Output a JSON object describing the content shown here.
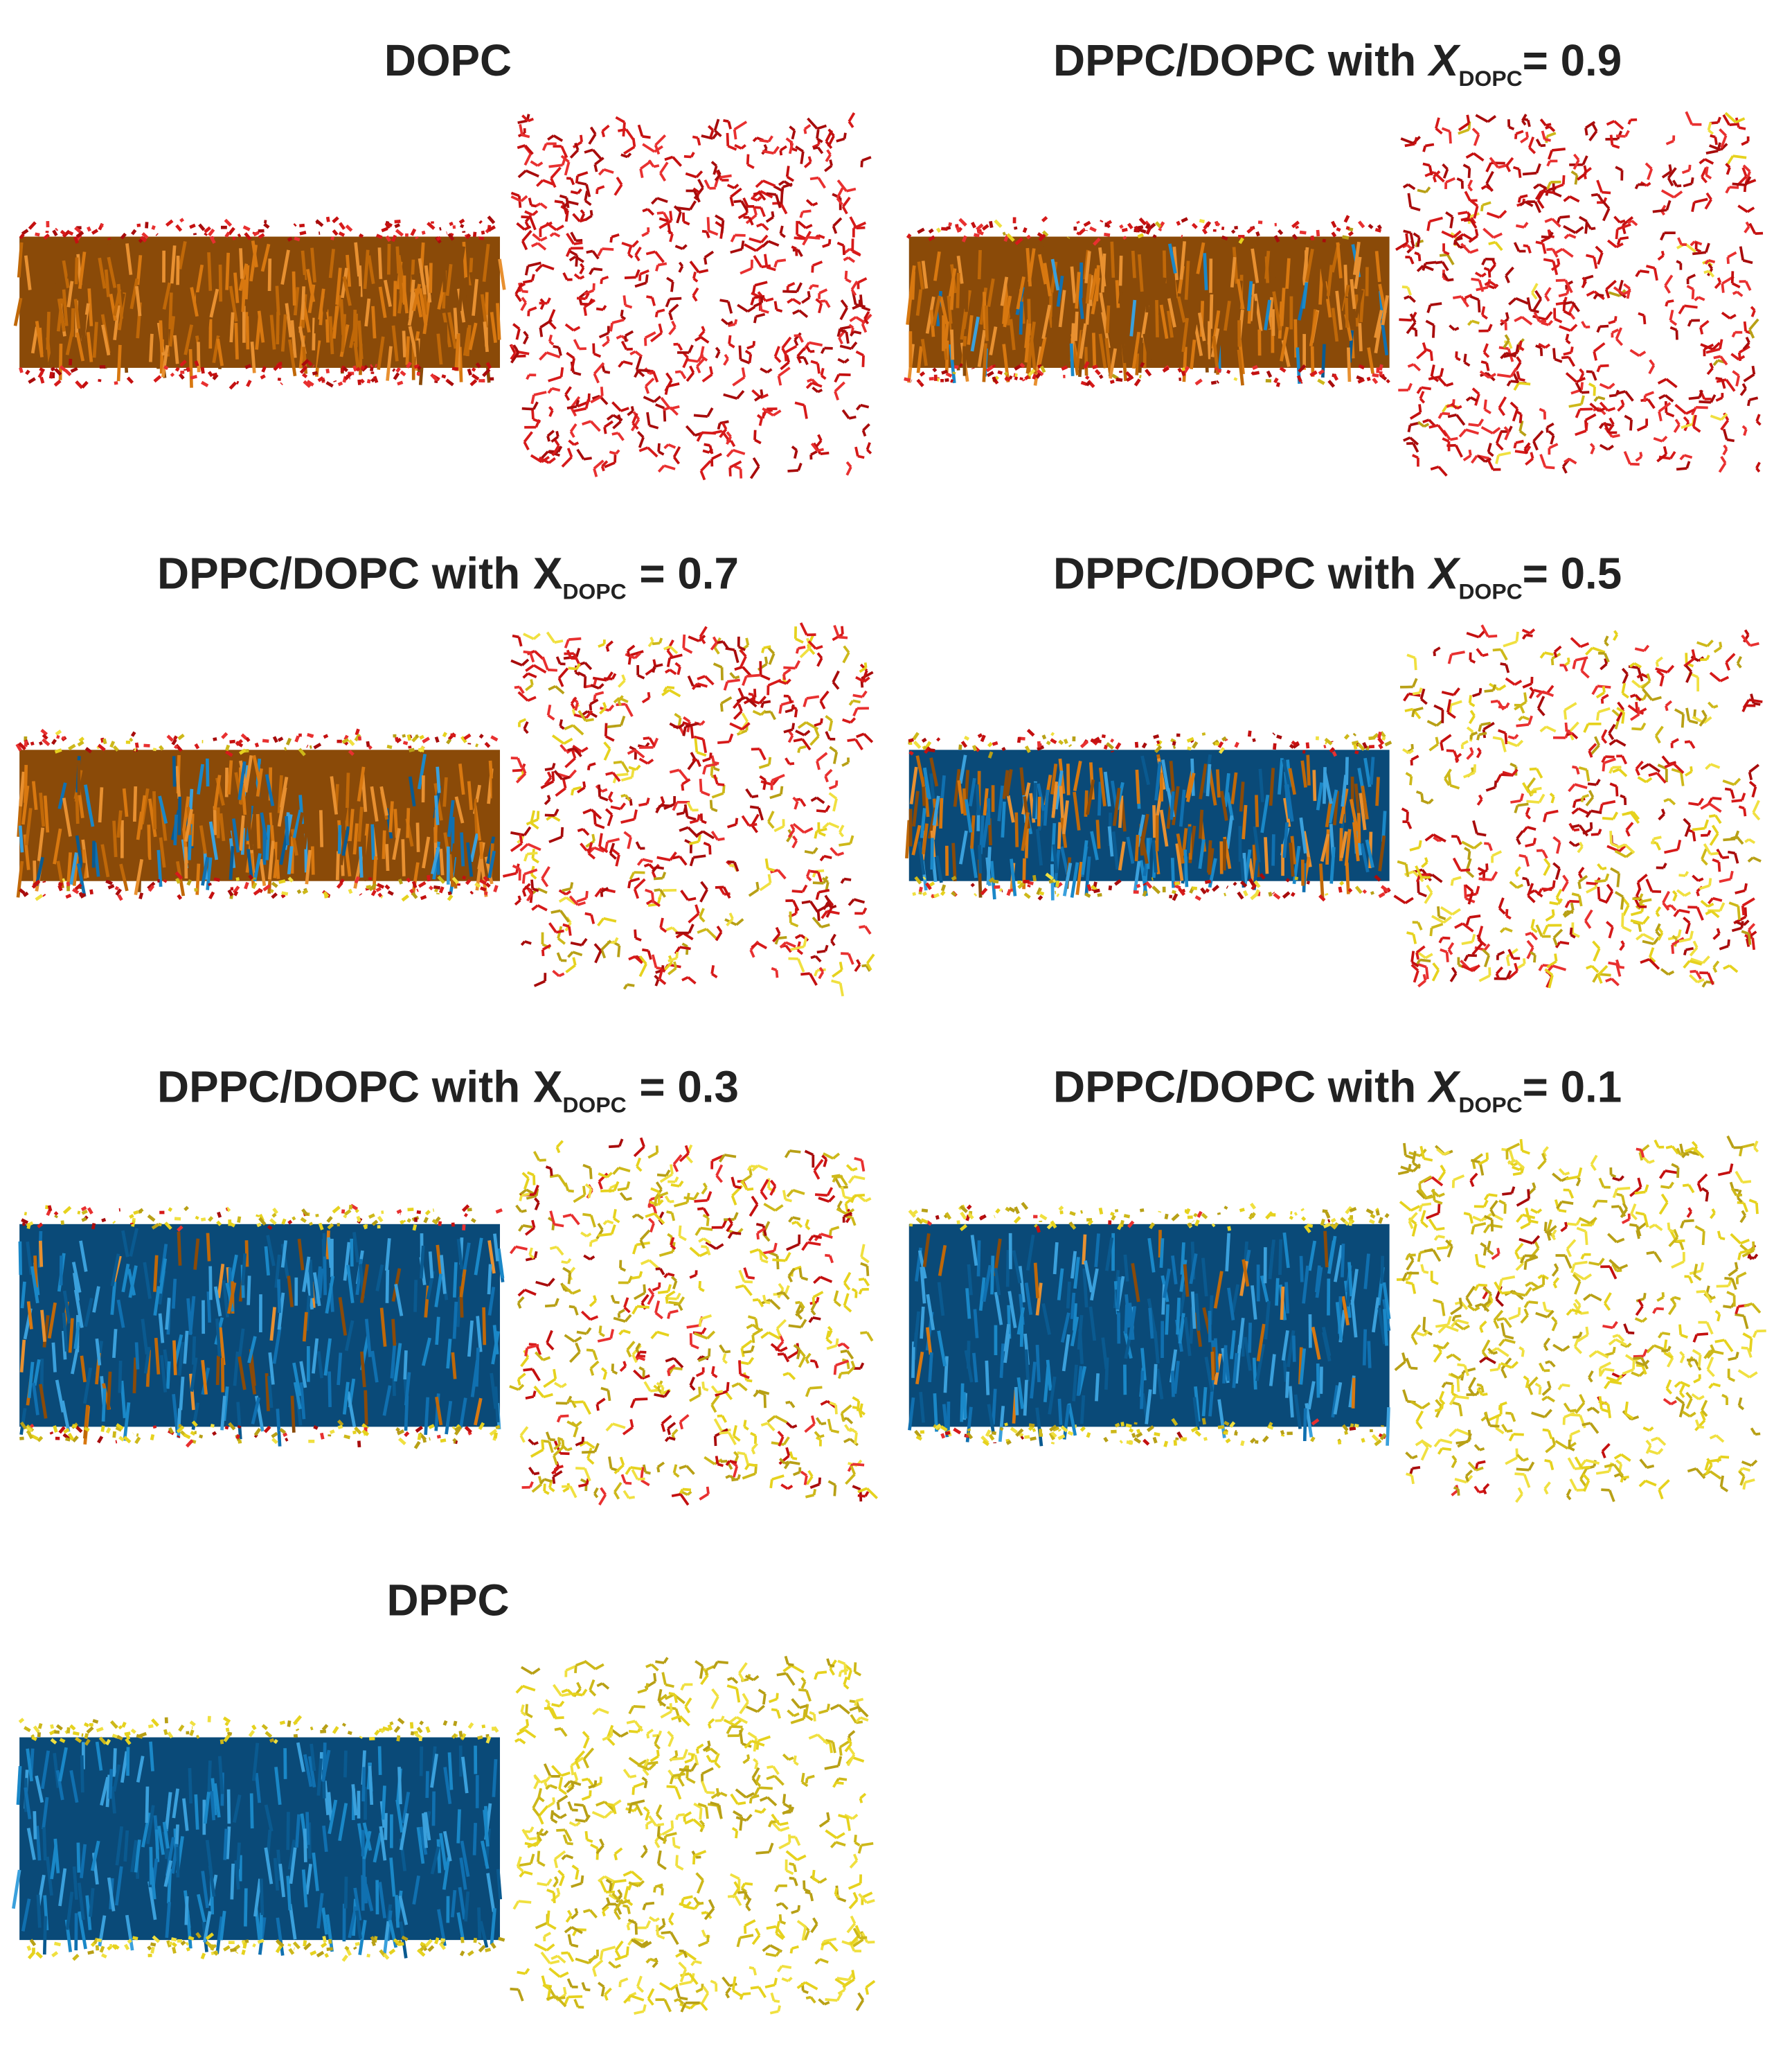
{
  "panels": [
    {
      "title": "DOPC"
    },
    {
      "title": "DPPC/DOPC with",
      "symbol": "X",
      "subscript": "DOPC",
      "value": "= 0.9",
      "italic": true
    },
    {
      "title": "DPPC/DOPC with",
      "symbol": "X",
      "subscript": "DOPC",
      "value": "= 0.7",
      "italic": false
    },
    {
      "title": "DPPC/DOPC with",
      "symbol": "X",
      "subscript": "DOPC",
      "value": "= 0.5",
      "italic": true
    },
    {
      "title": "DPPC/DOPC with",
      "symbol": "X",
      "subscript": "DOPC",
      "value": "= 0.3",
      "italic": false
    },
    {
      "title": "DPPC/DOPC with",
      "symbol": "X",
      "subscript": "DOPC",
      "value": "= 0.1",
      "italic": true
    },
    {
      "title": "DPPC"
    }
  ]
}
